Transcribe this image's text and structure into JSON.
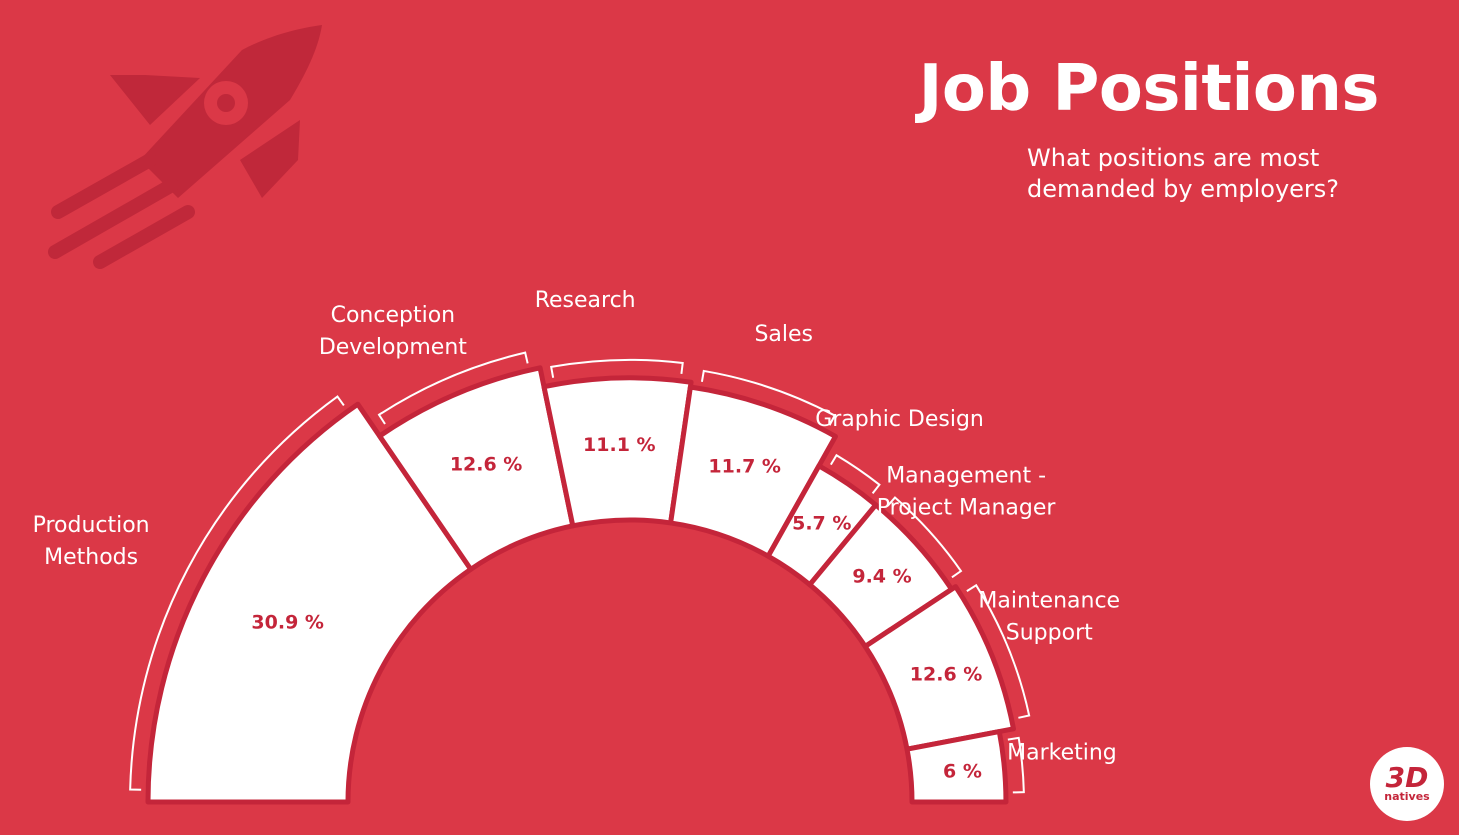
{
  "title": "Job Positions",
  "subtitle": "What positions are most demanded by employers?",
  "logo": {
    "main": "3D",
    "sub": "natives",
    "icon": "3dnatives-logo"
  },
  "decoration": {
    "icon": "rocket-icon"
  },
  "colors": {
    "background": "#db3847",
    "segment": "#ffffff",
    "divider": "#c4253a",
    "value_text": "#c4253a",
    "rocket": "#c0283a"
  },
  "chart_data": {
    "type": "pie",
    "shape": "half-donut",
    "categories": [
      "Production Methods",
      "Conception Development",
      "Research",
      "Sales",
      "Graphic Design",
      "Management - Project Manager",
      "Maintenance Support",
      "Marketing"
    ],
    "label_lines": [
      [
        "Production",
        "Methods"
      ],
      [
        "Conception",
        "Development"
      ],
      [
        "Research"
      ],
      [
        "Sales"
      ],
      [
        "Graphic Design"
      ],
      [
        "Management -",
        "Project Manager"
      ],
      [
        "Maintenance",
        "Support"
      ],
      [
        "Marketing"
      ]
    ],
    "values": [
      30.9,
      12.6,
      11.1,
      11.7,
      5.7,
      9.4,
      12.6,
      6
    ],
    "value_labels": [
      "30.9 %",
      "12.6 %",
      "11.1 %",
      "11.7 %",
      "5.7 %",
      "9.4 %",
      "12.6 %",
      "6 %"
    ],
    "outer_radius_index": [
      1.0,
      0.92,
      0.88,
      0.87,
      0.8,
      0.8,
      0.81,
      0.78
    ]
  }
}
